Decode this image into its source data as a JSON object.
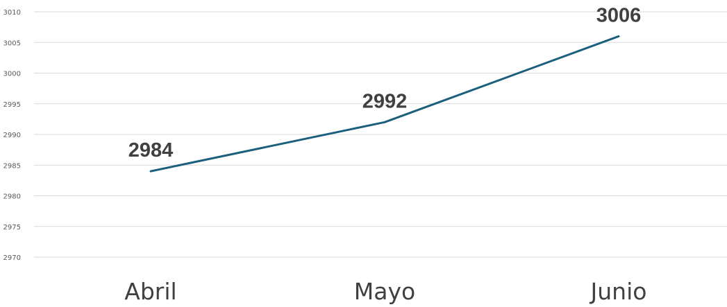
{
  "chart_data": {
    "type": "line",
    "categories": [
      "Abril",
      "Mayo",
      "Junio"
    ],
    "series": [
      {
        "values": [
          2984,
          2992,
          3006
        ]
      }
    ],
    "data_labels": [
      "2984",
      "2992",
      "3006"
    ],
    "ylim": [
      2970,
      3010
    ],
    "yticks": [
      2970,
      2975,
      2980,
      2985,
      2990,
      2995,
      3000,
      3005,
      3010
    ],
    "grid": true,
    "legend": "none",
    "line_color": "#1b5f7d"
  }
}
